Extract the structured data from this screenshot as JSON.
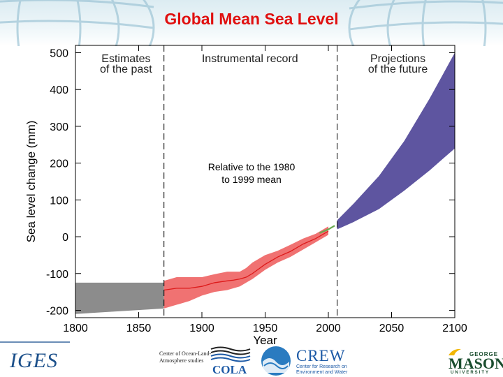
{
  "slide": {
    "title": "Global Mean Sea Level"
  },
  "chart_data": {
    "type": "area",
    "title": "",
    "xlabel": "Year",
    "ylabel": "Sea level change (mm)",
    "xlim": [
      1800,
      2100
    ],
    "ylim": [
      -220,
      520
    ],
    "x_ticks": [
      1800,
      1850,
      1900,
      1950,
      2000,
      2050,
      2100
    ],
    "y_ticks": [
      -200,
      -100,
      0,
      100,
      200,
      300,
      400,
      500
    ],
    "grid": false,
    "legend": "none",
    "dividers": [
      1870,
      2007
    ],
    "section_labels": [
      {
        "text": "Estimates\nof the past",
        "x": 1840
      },
      {
        "text": "Instrumental record",
        "x": 1938
      },
      {
        "text": "Projections\nof the future",
        "x": 2055
      }
    ],
    "annotation": "Relative to the 1980\nto 1999 mean",
    "series": [
      {
        "key": "past_estimates",
        "color": "#8c8c8c",
        "x": [
          1800,
          1870
        ],
        "lower": [
          -210,
          -195
        ],
        "upper": [
          -125,
          -125
        ]
      },
      {
        "key": "instrumental",
        "color": "#f07272",
        "line_color": "#dd1a1a",
        "x": [
          1870,
          1880,
          1890,
          1900,
          1910,
          1920,
          1925,
          1930,
          1935,
          1940,
          1950,
          1960,
          1970,
          1980,
          1990,
          2000
        ],
        "y": [
          -145,
          -140,
          -140,
          -135,
          -125,
          -120,
          -118,
          -115,
          -110,
          -100,
          -75,
          -55,
          -40,
          -20,
          -5,
          15
        ],
        "lower": [
          -195,
          -185,
          -175,
          -160,
          -150,
          -145,
          -140,
          -135,
          -125,
          -115,
          -90,
          -70,
          -55,
          -35,
          -15,
          5
        ],
        "upper": [
          -120,
          -110,
          -110,
          -110,
          -102,
          -95,
          -95,
          -95,
          -85,
          -70,
          -50,
          -38,
          -22,
          -5,
          8,
          28
        ]
      },
      {
        "key": "satellite",
        "color": "#6aa84f",
        "x": [
          1993,
          2000,
          2005
        ],
        "y": [
          10,
          20,
          30
        ]
      },
      {
        "key": "projections",
        "color": "#5e55a0",
        "x": [
          2007,
          2020,
          2040,
          2060,
          2080,
          2100
        ],
        "lower": [
          20,
          40,
          75,
          125,
          180,
          240
        ],
        "upper": [
          45,
          90,
          165,
          260,
          375,
          500
        ]
      }
    ]
  },
  "footer": {
    "iges": "IGES",
    "cola_text": "Center of Ocean-Land-Atmosphere studies",
    "cola": "COLA",
    "crew": "CREW",
    "crew_sub": "Center for Research on Environment and Water",
    "gm_george": "GEORGE",
    "gm_mason": "MASON",
    "gm_university": "UNIVERSITY"
  },
  "colors": {
    "title": "#e01010",
    "axis": "#000000"
  }
}
